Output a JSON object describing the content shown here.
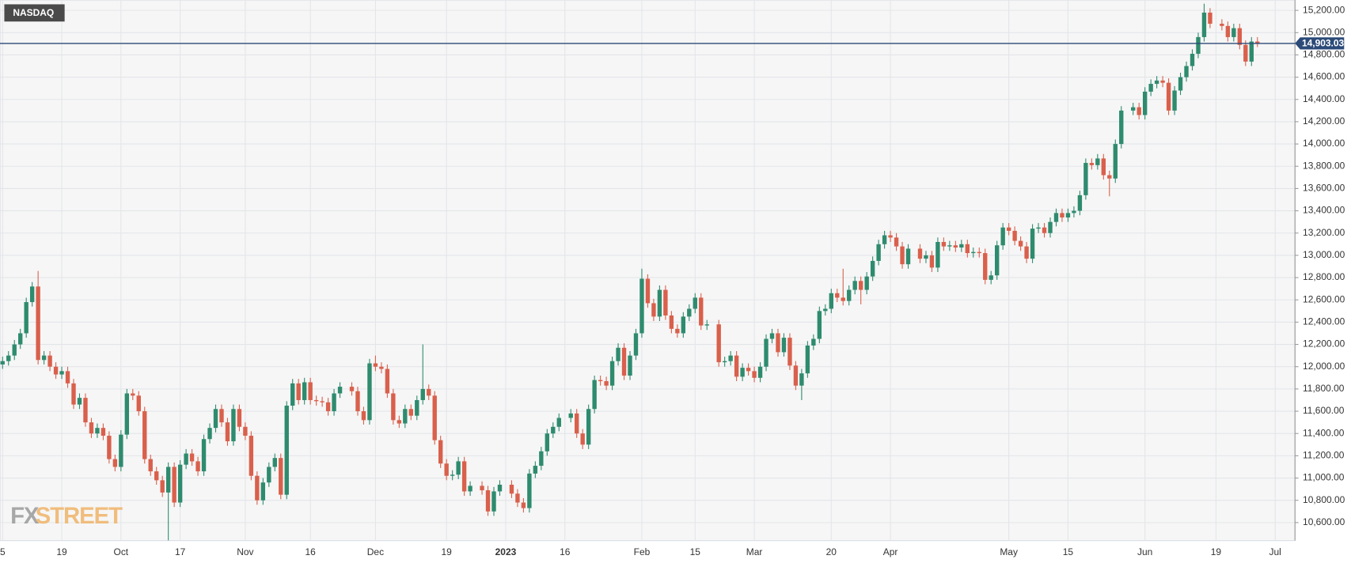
{
  "chart_data": {
    "type": "candlestick",
    "title": "NASDAQ",
    "logo": {
      "prefix": "FX",
      "suffix": "STREET"
    },
    "up_color": "#2e8b6e",
    "down_color": "#d9604c",
    "grid": true,
    "last_price": {
      "value": 14903.03,
      "label": "14,903.03",
      "color": "#2b4a78"
    },
    "ylim": [
      10438,
      15293
    ],
    "yticks": [
      {
        "value": 10600,
        "label": "10,600.00"
      },
      {
        "value": 10800,
        "label": "10,800.00"
      },
      {
        "value": 11000,
        "label": "11,000.00"
      },
      {
        "value": 11200,
        "label": "11,200.00"
      },
      {
        "value": 11400,
        "label": "11,400.00"
      },
      {
        "value": 11600,
        "label": "11,600.00"
      },
      {
        "value": 11800,
        "label": "11,800.00"
      },
      {
        "value": 12000,
        "label": "12,000.00"
      },
      {
        "value": 12200,
        "label": "12,200.00"
      },
      {
        "value": 12400,
        "label": "12,400.00"
      },
      {
        "value": 12600,
        "label": "12,600.00"
      },
      {
        "value": 12800,
        "label": "12,800.00"
      },
      {
        "value": 13000,
        "label": "13,000.00"
      },
      {
        "value": 13200,
        "label": "13,200.00"
      },
      {
        "value": 13400,
        "label": "13,400.00"
      },
      {
        "value": 13600,
        "label": "13,600.00"
      },
      {
        "value": 13800,
        "label": "13,800.00"
      },
      {
        "value": 14000,
        "label": "14,000.00"
      },
      {
        "value": 14200,
        "label": "14,200.00"
      },
      {
        "value": 14400,
        "label": "14,400.00"
      },
      {
        "value": 14600,
        "label": "14,600.00"
      },
      {
        "value": 14800,
        "label": "14,800.00"
      },
      {
        "value": 15000,
        "label": "15,000.00"
      },
      {
        "value": 15200,
        "label": "15,200.00"
      }
    ],
    "categories": [
      "5",
      null,
      null,
      null,
      null,
      null,
      null,
      null,
      null,
      null,
      "19",
      null,
      null,
      null,
      null,
      null,
      null,
      null,
      null,
      null,
      "Oct",
      null,
      null,
      null,
      null,
      null,
      null,
      null,
      null,
      null,
      "17",
      null,
      null,
      null,
      null,
      null,
      null,
      null,
      null,
      null,
      null,
      "Nov",
      null,
      null,
      null,
      null,
      null,
      null,
      null,
      null,
      null,
      null,
      "16",
      null,
      null,
      null,
      null,
      null,
      null,
      null,
      null,
      null,
      null,
      "Dec",
      null,
      null,
      null,
      null,
      null,
      null,
      null,
      null,
      null,
      null,
      null,
      "19",
      null,
      null,
      null,
      null,
      null,
      null,
      null,
      null,
      null,
      "2023",
      null,
      null,
      null,
      null,
      null,
      null,
      null,
      null,
      null,
      "16",
      null,
      null,
      null,
      null,
      null,
      null,
      null,
      null,
      null,
      null,
      null,
      null,
      "Feb",
      null,
      null,
      null,
      null,
      null,
      null,
      null,
      null,
      "15",
      null,
      null,
      null,
      null,
      null,
      null,
      null,
      null,
      null,
      "Mar",
      null,
      null,
      null,
      null,
      null,
      null,
      null,
      null,
      null,
      null,
      null,
      null,
      "20",
      null,
      null,
      null,
      null,
      null,
      null,
      null,
      null,
      null,
      "Apr",
      null,
      null,
      null,
      null,
      null,
      null,
      null,
      null,
      null,
      null,
      null,
      null,
      null,
      null,
      null,
      null,
      null,
      null,
      null,
      "May",
      null,
      null,
      null,
      null,
      null,
      null,
      null,
      null,
      null,
      "15",
      null,
      null,
      null,
      null,
      null,
      null,
      null,
      null,
      null,
      null,
      null,
      null,
      "Jun",
      null,
      null,
      null,
      null,
      null,
      null,
      null,
      null,
      null,
      null,
      null,
      "19",
      null,
      null,
      null,
      null,
      null,
      null,
      null,
      null,
      null,
      "Jul"
    ],
    "open": [
      12020,
      12050,
      12100,
      12200,
      12300,
      12580,
      12720,
      12060,
      12100,
      12000,
      11930,
      11960,
      11850,
      11660,
      11720,
      11500,
      11400,
      11450,
      11380,
      11170,
      11100,
      11390,
      11760,
      11740,
      11600,
      11170,
      11060,
      10980,
      10870,
      11100,
      10780,
      11120,
      11220,
      11150,
      11060,
      11350,
      11450,
      11620,
      11500,
      11330,
      11620,
      11460,
      11380,
      11020,
      10800,
      10960,
      11100,
      11180,
      10850,
      11650,
      11850,
      11700,
      11860,
      11700,
      11690,
      11680,
      11600,
      11760,
      null,
      11820,
      11780,
      11600,
      11520,
      12030,
      12000,
      11980,
      11760,
      11520,
      11490,
      11620,
      11560,
      11700,
      11800,
      11740,
      11340,
      11130,
      11020,
      11030,
      11150,
      10880,
      null,
      10930,
      10890,
      10700,
      10880,
      null,
      10940,
      10860,
      10780,
      10730,
      11040,
      11110,
      11240,
      11400,
      11460,
      null,
      11540,
      11580,
      11400,
      11300,
      11620,
      11880,
      11870,
      11830,
      12050,
      12170,
      11920,
      12100,
      12300,
      12790,
      12570,
      12450,
      12690,
      12460,
      12340,
      12300,
      12450,
      12520,
      12620,
      12370,
      null,
      12380,
      12040,
      12050,
      12100,
      11910,
      11990,
      11960,
      11900,
      12000,
      12250,
      12300,
      12130,
      12260,
      12010,
      11830,
      11940,
      12190,
      12250,
      12500,
      12520,
      12660,
      12620,
      12590,
      12690,
      12770,
      12690,
      12810,
      12950,
      13100,
      13180,
      13160,
      13080,
      12920,
      null,
      13060,
      12970,
      13000,
      12890,
      13120,
      13080,
      13090,
      13070,
      13100,
      13020,
      13030,
      13020,
      12780,
      12820,
      13090,
      13250,
      13220,
      13130,
      13080,
      12970,
      13240,
      13250,
      13200,
      13300,
      13380,
      13340,
      13380,
      13400,
      13540,
      13830,
      13810,
      13870,
      13720,
      13690,
      14000,
      null,
      14300,
      14330,
      14260,
      14470,
      14540,
      14570,
      14550,
      14300,
      14480,
      14600,
      14700,
      14810,
      14960,
      15180,
      null,
      15080,
      15060,
      14960,
      15040,
      14890,
      14740,
      14920,
      null,
      null,
      null
    ],
    "high": [
      12090,
      12140,
      12240,
      12340,
      12620,
      12760,
      12860,
      12140,
      12140,
      12040,
      12000,
      12000,
      11890,
      11760,
      11760,
      11540,
      11490,
      11490,
      11420,
      11210,
      11430,
      11800,
      11800,
      11780,
      11640,
      11210,
      11100,
      11020,
      11140,
      11140,
      11160,
      11260,
      11260,
      11190,
      11390,
      11490,
      11660,
      11660,
      11540,
      11660,
      11660,
      11500,
      11420,
      11060,
      11000,
      11140,
      11220,
      11220,
      11690,
      11890,
      11890,
      11900,
      11900,
      11740,
      11730,
      11720,
      11800,
      11860,
      null,
      11860,
      11820,
      11640,
      12070,
      12100,
      12040,
      12020,
      11800,
      11560,
      11660,
      11660,
      11740,
      12200,
      11840,
      11780,
      11380,
      11170,
      11070,
      11190,
      11190,
      10970,
      null,
      10970,
      10930,
      10920,
      10980,
      null,
      10980,
      10900,
      10820,
      11080,
      11150,
      11280,
      11440,
      11500,
      11580,
      null,
      11620,
      11620,
      11440,
      11660,
      11920,
      11920,
      11910,
      12090,
      12210,
      12210,
      12140,
      12340,
      12880,
      12830,
      12610,
      12730,
      12730,
      12500,
      12380,
      12490,
      12560,
      12660,
      12660,
      12420,
      null,
      12420,
      12090,
      12140,
      12140,
      12030,
      12030,
      12000,
      12040,
      12290,
      12340,
      12340,
      12300,
      12300,
      12050,
      11980,
      12230,
      12290,
      12540,
      12560,
      12700,
      12700,
      12880,
      12730,
      12810,
      12810,
      12850,
      12990,
      13140,
      13220,
      13220,
      13200,
      13120,
      13100,
      null,
      13100,
      13040,
      13040,
      13160,
      13160,
      13130,
      13130,
      13140,
      13140,
      13070,
      13070,
      13060,
      12860,
      13130,
      13290,
      13290,
      13260,
      13170,
      13120,
      13280,
      13290,
      13290,
      13340,
      13420,
      13420,
      13420,
      13440,
      13580,
      13870,
      13870,
      13910,
      13910,
      13760,
      14040,
      14340,
      null,
      14370,
      14370,
      14510,
      14580,
      14610,
      14610,
      14590,
      14520,
      14640,
      14740,
      14850,
      15000,
      15260,
      15220,
      null,
      15120,
      15100,
      15080,
      15080,
      14930,
      14960,
      14960,
      null,
      null,
      null
    ],
    "low": [
      11980,
      12010,
      12060,
      12160,
      12260,
      12540,
      12020,
      12020,
      11960,
      11890,
      11890,
      11810,
      11620,
      11620,
      11460,
      11360,
      11360,
      11340,
      11130,
      11060,
      11060,
      11350,
      11700,
      11560,
      11130,
      11020,
      10940,
      10830,
      10440,
      10740,
      10740,
      11080,
      11110,
      11020,
      11020,
      11310,
      11410,
      11460,
      11290,
      11290,
      11420,
      11340,
      10980,
      10760,
      10760,
      10920,
      11060,
      10810,
      10810,
      11610,
      11660,
      11660,
      11660,
      11650,
      11640,
      11560,
      11560,
      11720,
      null,
      11740,
      11560,
      11480,
      11480,
      11960,
      11940,
      11720,
      11480,
      11450,
      11450,
      11520,
      11520,
      11660,
      11700,
      11300,
      11090,
      10980,
      10980,
      10990,
      10840,
      10840,
      null,
      10850,
      10660,
      10660,
      10840,
      null,
      10820,
      10740,
      10690,
      10690,
      11000,
      11070,
      11200,
      11360,
      11420,
      null,
      11500,
      11360,
      11260,
      11260,
      11580,
      11830,
      11790,
      11790,
      12010,
      11880,
      11880,
      12060,
      12260,
      12530,
      12410,
      12410,
      12420,
      12300,
      12260,
      12260,
      12410,
      12480,
      12330,
      12330,
      null,
      12000,
      12000,
      12010,
      11870,
      11870,
      11920,
      11860,
      11860,
      11960,
      12210,
      12090,
      12090,
      11970,
      11790,
      11700,
      11900,
      12150,
      12210,
      12460,
      12480,
      12580,
      12550,
      12550,
      12650,
      12560,
      12650,
      12770,
      12910,
      13060,
      13120,
      13040,
      12880,
      12880,
      null,
      12930,
      12930,
      12850,
      12850,
      13040,
      13040,
      13030,
      13030,
      12980,
      12980,
      12980,
      12740,
      12740,
      12780,
      13050,
      13180,
      13090,
      13040,
      12930,
      12930,
      13200,
      13160,
      13160,
      13260,
      13300,
      13300,
      13340,
      13360,
      13500,
      13770,
      13770,
      13680,
      13530,
      13650,
      13960,
      null,
      14260,
      14220,
      14220,
      14430,
      14500,
      14510,
      14260,
      14260,
      14440,
      14560,
      14660,
      14770,
      14920,
      15040,
      null,
      15020,
      14920,
      14920,
      14850,
      14700,
      14700,
      14870,
      null,
      null,
      null
    ],
    "close": [
      12050,
      12100,
      12200,
      12300,
      12580,
      12720,
      12060,
      12100,
      12000,
      11930,
      11960,
      11850,
      11660,
      11720,
      11500,
      11400,
      11450,
      11380,
      11170,
      11100,
      11390,
      11760,
      11740,
      11600,
      11170,
      11060,
      10980,
      10870,
      11100,
      10780,
      11120,
      11220,
      11150,
      11060,
      11350,
      11450,
      11620,
      11500,
      11330,
      11620,
      11460,
      11380,
      11020,
      10800,
      10960,
      11100,
      11180,
      10850,
      11650,
      11850,
      11700,
      11860,
      11700,
      11690,
      11680,
      11600,
      11760,
      11820,
      null,
      11780,
      11600,
      11520,
      12030,
      12000,
      11980,
      11760,
      11520,
      11490,
      11620,
      11560,
      11700,
      11800,
      11740,
      11340,
      11130,
      11020,
      11030,
      11150,
      10880,
      10930,
      null,
      10890,
      10700,
      10880,
      10940,
      null,
      10860,
      10780,
      10730,
      11040,
      11110,
      11240,
      11400,
      11460,
      11540,
      null,
      11580,
      11400,
      11300,
      11620,
      11880,
      11870,
      11830,
      12050,
      12170,
      11920,
      12100,
      12300,
      12790,
      12570,
      12450,
      12690,
      12460,
      12340,
      12300,
      12450,
      12520,
      12620,
      12370,
      12380,
      null,
      12040,
      12050,
      12100,
      11910,
      11990,
      11960,
      11900,
      12000,
      12250,
      12300,
      12130,
      12260,
      12010,
      11830,
      11940,
      12190,
      12250,
      12500,
      12520,
      12660,
      12620,
      12590,
      12690,
      12770,
      12690,
      12810,
      12950,
      13100,
      13180,
      13160,
      13080,
      12920,
      13060,
      null,
      12970,
      13000,
      12890,
      13120,
      13080,
      13090,
      13070,
      13100,
      13020,
      13030,
      13020,
      12780,
      12820,
      13090,
      13250,
      13220,
      13130,
      13080,
      12970,
      13240,
      13250,
      13200,
      13300,
      13380,
      13340,
      13380,
      13400,
      13540,
      13830,
      13810,
      13870,
      13720,
      13690,
      14000,
      14300,
      null,
      14330,
      14260,
      14470,
      14540,
      14570,
      14550,
      14300,
      14480,
      14600,
      14700,
      14810,
      14960,
      15180,
      15080,
      null,
      15060,
      14960,
      15040,
      14890,
      14740,
      14920,
      14903.03,
      null,
      null,
      null
    ]
  }
}
